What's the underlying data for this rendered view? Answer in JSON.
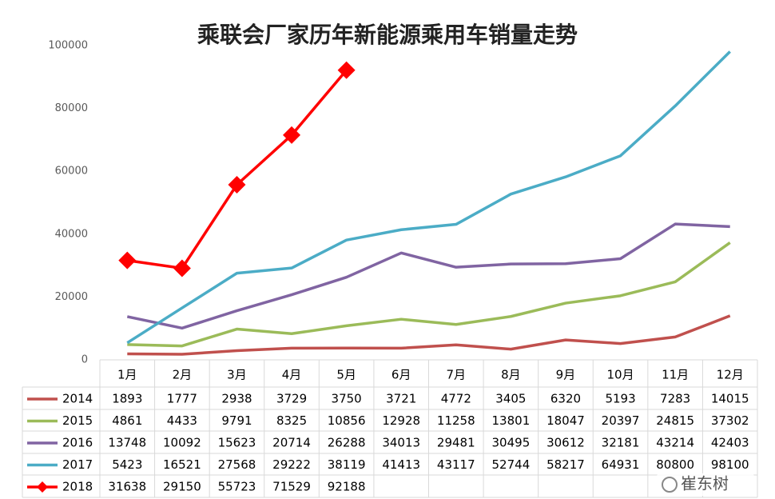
{
  "chart_data": {
    "type": "line",
    "title": "乘联会厂家历年新能源乘用车销量走势",
    "categories": [
      "1月",
      "2月",
      "3月",
      "4月",
      "5月",
      "6月",
      "7月",
      "8月",
      "9月",
      "10月",
      "11月",
      "12月"
    ],
    "series": [
      {
        "name": "2014",
        "color": "#c0504d",
        "values": [
          1893,
          1777,
          2938,
          3729,
          3750,
          3721,
          4772,
          3405,
          6320,
          5193,
          7283,
          14015
        ]
      },
      {
        "name": "2015",
        "color": "#9bbb59",
        "values": [
          4861,
          4433,
          9791,
          8325,
          10856,
          12928,
          11258,
          13801,
          18047,
          20397,
          24815,
          37302
        ]
      },
      {
        "name": "2016",
        "color": "#8064a2",
        "values": [
          13748,
          10092,
          15623,
          20714,
          26288,
          34013,
          29481,
          30495,
          30612,
          32181,
          43214,
          42403
        ]
      },
      {
        "name": "2017",
        "color": "#4bacc6",
        "values": [
          5423,
          16521,
          27568,
          29222,
          38119,
          41413,
          43117,
          52744,
          58217,
          64931,
          80800,
          98100
        ]
      },
      {
        "name": "2018",
        "color": "#ff0000",
        "marker": "diamond",
        "values": [
          31638,
          29150,
          55723,
          71529,
          92188,
          null,
          null,
          null,
          null,
          null,
          null,
          null
        ]
      }
    ],
    "ylim": [
      0,
      100000
    ],
    "yticks": [
      0,
      20000,
      40000,
      60000,
      80000,
      100000
    ],
    "grid": false,
    "data_table": true,
    "watermark": "崔东树"
  }
}
